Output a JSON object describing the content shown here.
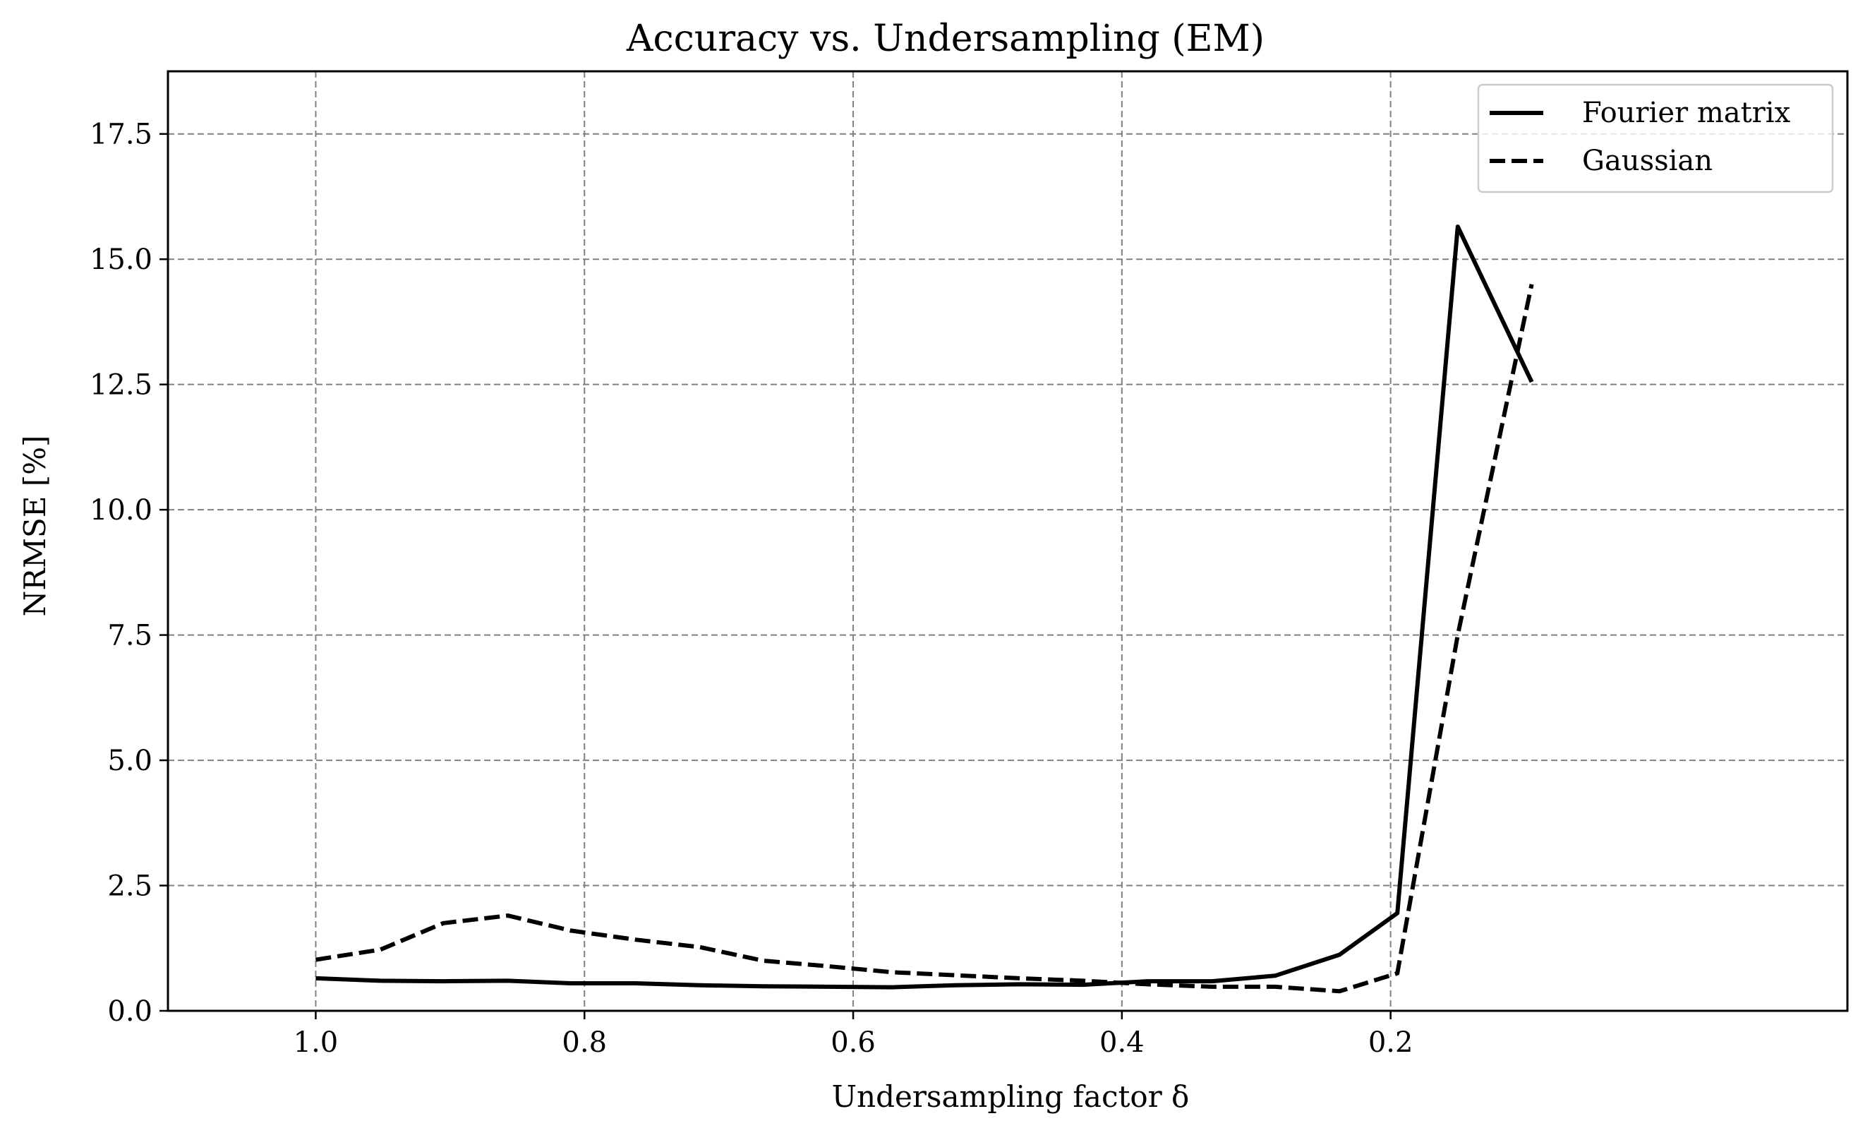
{
  "chart_data": {
    "type": "line",
    "title": "Accuracy vs. Undersampling (EM)",
    "xlabel": "Undersampling factor δ",
    "ylabel": "NRMSE [%]",
    "x_reversed": true,
    "xlim": [
      1.11,
      -0.14
    ],
    "ylim": [
      0,
      18.75
    ],
    "x_ticks": [
      1.0,
      0.8,
      0.6,
      0.4,
      0.2
    ],
    "x_tick_labels": [
      "1.0",
      "0.8",
      "0.6",
      "0.4",
      "0.2"
    ],
    "y_ticks": [
      0,
      2.5,
      5.0,
      7.5,
      10.0,
      12.5,
      15.0,
      17.5
    ],
    "y_tick_labels": [
      "0.0",
      "2.5",
      "5.0",
      "7.5",
      "10.0",
      "12.5",
      "15.0",
      "17.5"
    ],
    "grid": true,
    "legend_position": "top-right",
    "series": [
      {
        "name": "Fourier matrix",
        "style": "solid",
        "color": "#000000",
        "x": [
          1.0,
          0.952,
          0.905,
          0.857,
          0.81,
          0.762,
          0.714,
          0.667,
          0.619,
          0.571,
          0.524,
          0.476,
          0.429,
          0.381,
          0.333,
          0.286,
          0.238,
          0.195,
          0.15,
          0.095
        ],
        "y": [
          0.65,
          0.6,
          0.59,
          0.6,
          0.55,
          0.55,
          0.51,
          0.49,
          0.48,
          0.47,
          0.51,
          0.53,
          0.52,
          0.59,
          0.59,
          0.7,
          1.12,
          1.95,
          15.65,
          12.55
        ]
      },
      {
        "name": "Gaussian",
        "style": "dashed",
        "color": "#000000",
        "x": [
          1.0,
          0.952,
          0.905,
          0.857,
          0.81,
          0.762,
          0.714,
          0.667,
          0.619,
          0.571,
          0.524,
          0.476,
          0.429,
          0.381,
          0.333,
          0.286,
          0.238,
          0.195,
          0.15,
          0.095
        ],
        "y": [
          1.02,
          1.22,
          1.75,
          1.9,
          1.6,
          1.42,
          1.27,
          1.0,
          0.89,
          0.77,
          0.71,
          0.65,
          0.6,
          0.53,
          0.48,
          0.48,
          0.39,
          0.75,
          7.5,
          14.5
        ]
      }
    ]
  }
}
